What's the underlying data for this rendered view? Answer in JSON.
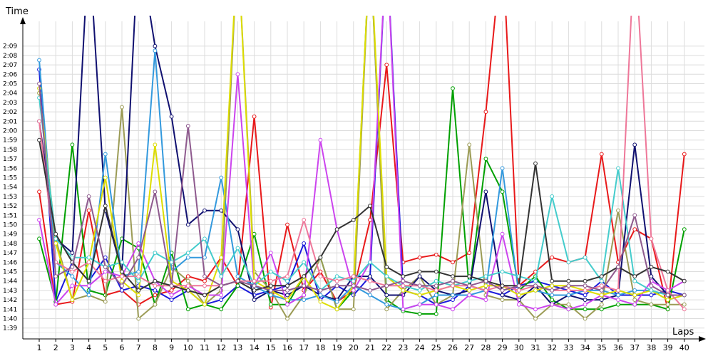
{
  "chart_data": {
    "type": "line",
    "title": "",
    "xlabel": "Laps",
    "ylabel": "Time",
    "x": [
      1,
      2,
      3,
      4,
      5,
      6,
      7,
      8,
      9,
      10,
      11,
      12,
      13,
      14,
      15,
      16,
      17,
      18,
      19,
      20,
      21,
      22,
      23,
      24,
      25,
      26,
      27,
      28,
      29,
      30,
      31,
      32,
      33,
      34,
      35,
      36,
      37,
      38,
      39,
      40
    ],
    "xlim": [
      1,
      40
    ],
    "ylim_seconds": [
      98,
      131
    ],
    "y_tick_labels": [
      "1:39",
      "1:40",
      "1:41",
      "1:42",
      "1:43",
      "1:44",
      "1:45",
      "1:46",
      "1:47",
      "1:48",
      "1:49",
      "1:50",
      "1:51",
      "1:52",
      "1:53",
      "1:54",
      "1:55",
      "1:56",
      "1:57",
      "1:58",
      "1:59",
      "2:00",
      "2:01",
      "2:02",
      "2:03",
      "2:04",
      "2:05",
      "2:06",
      "2:07",
      "2:08",
      "2:09"
    ],
    "y_tick_seconds": [
      99,
      100,
      101,
      102,
      103,
      104,
      105,
      106,
      107,
      108,
      109,
      110,
      111,
      112,
      113,
      114,
      115,
      116,
      117,
      118,
      119,
      120,
      121,
      122,
      123,
      124,
      125,
      126,
      127,
      128,
      129
    ],
    "grid": true,
    "legend": "none",
    "series": [
      {
        "color": "#e8191a",
        "values": [
          113.5,
          101.5,
          101.8,
          111.5,
          102.5,
          103.0,
          101.5,
          102.5,
          103.0,
          104.5,
          104.0,
          106.5,
          103.5,
          121.5,
          101.2,
          110.0,
          103.0,
          105.0,
          101.8,
          103.0,
          110.5,
          127.0,
          106.0,
          106.5,
          106.8,
          106.0,
          107.0,
          122.0,
          140.0,
          103.5,
          105.0,
          106.5,
          106.0,
          106.5,
          117.5,
          106.0,
          109.5,
          108.5,
          101.0,
          117.5
        ]
      },
      {
        "color": "#1a1adb",
        "values": [
          126.5,
          101.8,
          106.0,
          104.0,
          106.5,
          103.0,
          103.5,
          103.0,
          102.0,
          103.0,
          101.5,
          102.0,
          103.5,
          102.5,
          103.0,
          103.5,
          108.0,
          102.0,
          103.5,
          102.5,
          104.5,
          140.0,
          103.0,
          102.5,
          101.5,
          102.0,
          103.5,
          103.0,
          102.5,
          103.5,
          104.0,
          103.5,
          103.0,
          102.5,
          104.0,
          102.5,
          102.5,
          102.5,
          103.0,
          102.5
        ]
      },
      {
        "color": "#00a000",
        "values": [
          108.5,
          101.8,
          118.5,
          103.0,
          102.5,
          108.5,
          107.5,
          101.5,
          107.0,
          101.0,
          101.5,
          101.0,
          103.5,
          109.0,
          101.5,
          101.5,
          104.5,
          106.5,
          101.0,
          103.0,
          140.0,
          102.0,
          100.8,
          100.5,
          100.5,
          124.5,
          103.0,
          117.0,
          113.5,
          103.0,
          104.5,
          102.0,
          101.0,
          101.0,
          101.0,
          101.5,
          101.5,
          101.5,
          101.0,
          109.5
        ]
      },
      {
        "color": "#9b9b55",
        "values": [
          124.0,
          108.5,
          102.0,
          102.5,
          101.8,
          122.5,
          100.0,
          101.5,
          105.5,
          104.0,
          101.5,
          103.0,
          140.0,
          105.0,
          103.0,
          100.0,
          102.5,
          106.5,
          101.0,
          101.0,
          140.0,
          101.0,
          103.0,
          104.5,
          101.5,
          102.5,
          118.5,
          102.5,
          102.0,
          102.0,
          100.0,
          101.5,
          101.5,
          100.0,
          101.5,
          111.5,
          102.0,
          101.5,
          101.5,
          101.5
        ]
      },
      {
        "color": "#101070",
        "values": [
          121.0,
          108.5,
          107.0,
          140.0,
          111.5,
          105.0,
          140.0,
          129.0,
          121.5,
          110.0,
          111.5,
          111.5,
          109.5,
          102.0,
          103.0,
          102.5,
          103.5,
          102.5,
          102.0,
          104.5,
          104.5,
          102.5,
          102.5,
          104.5,
          103.0,
          102.5,
          103.0,
          113.5,
          102.5,
          102.0,
          103.5,
          101.5,
          102.5,
          102.0,
          102.0,
          102.5,
          118.5,
          104.5,
          102.5,
          102.5
        ]
      },
      {
        "color": "#3399dd",
        "values": [
          127.5,
          106.0,
          104.5,
          102.5,
          117.5,
          104.5,
          105.0,
          128.5,
          105.0,
          106.5,
          106.5,
          115.0,
          104.5,
          103.5,
          102.5,
          102.0,
          102.0,
          102.5,
          101.8,
          103.5,
          102.5,
          101.5,
          101.0,
          101.5,
          102.5,
          102.5,
          102.5,
          103.0,
          116.0,
          102.5,
          103.0,
          102.5,
          102.5,
          103.0,
          103.0,
          102.5,
          103.0,
          103.0,
          102.0,
          102.5
        ]
      },
      {
        "color": "#cc44ee",
        "values": [
          110.5,
          101.5,
          103.5,
          103.5,
          105.0,
          104.5,
          108.0,
          104.0,
          102.5,
          103.5,
          102.5,
          102.5,
          126.0,
          103.5,
          107.0,
          101.5,
          102.5,
          119.0,
          109.5,
          103.0,
          106.0,
          140.0,
          101.0,
          101.5,
          101.5,
          101.0,
          102.5,
          102.0,
          109.0,
          101.5,
          101.0,
          101.5,
          101.0,
          101.5,
          102.5,
          102.0,
          101.5,
          104.0,
          103.0,
          104.0
        ]
      },
      {
        "color": "#dddd00",
        "values": [
          124.5,
          108.0,
          102.0,
          106.0,
          115.0,
          104.0,
          102.5,
          118.5,
          104.0,
          103.0,
          101.5,
          106.5,
          140.0,
          104.0,
          103.0,
          102.0,
          104.5,
          101.8,
          101.0,
          103.5,
          140.0,
          104.5,
          103.0,
          102.5,
          103.0,
          103.5,
          103.0,
          103.5,
          103.5,
          102.5,
          103.0,
          103.5,
          103.5,
          103.0,
          102.5,
          103.0,
          102.5,
          103.0,
          102.0,
          102.5
        ]
      },
      {
        "color": "#44cccc",
        "values": [
          123.5,
          108.5,
          106.5,
          106.5,
          105.5,
          106.0,
          104.0,
          107.0,
          106.0,
          107.0,
          108.5,
          104.5,
          107.5,
          103.5,
          105.0,
          104.0,
          106.0,
          103.0,
          104.5,
          104.0,
          106.0,
          104.5,
          103.5,
          103.0,
          104.0,
          103.5,
          104.0,
          104.5,
          105.0,
          104.5,
          104.0,
          113.0,
          106.0,
          106.5,
          104.0,
          116.0,
          104.0,
          103.0,
          102.5,
          102.5
        ]
      },
      {
        "color": "#ee7799",
        "values": [
          121.0,
          106.0,
          105.0,
          106.0,
          104.0,
          104.5,
          104.5,
          103.5,
          103.5,
          103.5,
          103.5,
          103.5,
          104.0,
          104.0,
          104.0,
          104.5,
          110.5,
          104.5,
          104.0,
          104.5,
          104.0,
          103.5,
          103.5,
          103.5,
          103.0,
          103.5,
          103.5,
          103.0,
          103.5,
          103.0,
          103.5,
          103.0,
          103.0,
          103.0,
          103.5,
          103.0,
          140.0,
          108.5,
          103.0,
          101.0
        ]
      },
      {
        "color": "#333333",
        "values": [
          119.0,
          109.0,
          106.0,
          104.0,
          112.0,
          105.0,
          103.0,
          104.0,
          103.5,
          103.0,
          102.5,
          103.5,
          104.0,
          103.0,
          103.5,
          103.5,
          104.5,
          106.5,
          109.5,
          110.5,
          112.0,
          105.5,
          104.5,
          105.0,
          105.0,
          104.5,
          104.5,
          104.0,
          103.5,
          103.5,
          116.5,
          104.0,
          104.0,
          104.0,
          104.5,
          105.5,
          104.5,
          105.5,
          105.0,
          104.0
        ]
      },
      {
        "color": "#8e5a8e",
        "values": [
          125.0,
          104.5,
          105.5,
          113.0,
          105.5,
          103.5,
          106.5,
          113.5,
          103.5,
          120.5,
          104.5,
          103.5,
          104.0,
          103.5,
          103.0,
          103.0,
          103.5,
          103.0,
          103.5,
          103.5,
          103.0,
          103.5,
          104.0,
          103.5,
          103.5,
          104.0,
          103.5,
          104.0,
          103.0,
          103.5,
          103.5,
          103.0,
          103.5,
          103.5,
          103.0,
          105.5,
          111.0,
          103.5,
          102.5,
          102.5
        ]
      }
    ]
  }
}
